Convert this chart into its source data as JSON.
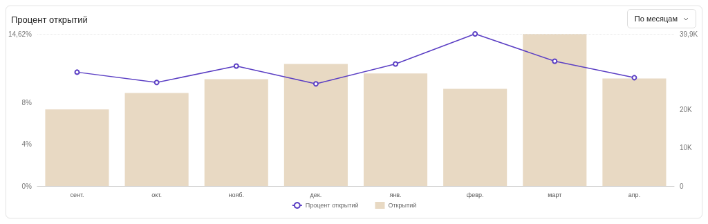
{
  "chart_data": {
    "type": "bar",
    "title": "Процент открытий",
    "annotations": [
      "По месяцам"
    ],
    "categories": [
      "сент.",
      "окт.",
      "нояб.",
      "дек.",
      "янв.",
      "февр.",
      "март",
      "апр."
    ],
    "series": [
      {
        "name": "Процент открытий",
        "type": "line",
        "color": "#5b3fc4",
        "values": [
          10.94,
          9.95,
          11.53,
          9.82,
          11.73,
          14.62,
          11.99,
          10.41
        ]
      },
      {
        "name": "Открытий",
        "type": "bar",
        "axis": "y2",
        "color": "#e8d9c3",
        "values": [
          20100,
          24400,
          28000,
          32000,
          29500,
          25500,
          39900,
          28200
        ]
      }
    ],
    "ylim": [
      0,
      14.62
    ],
    "yticks": [
      {
        "value": 0,
        "label": "0%"
      },
      {
        "value": 4,
        "label": "4%"
      },
      {
        "value": 8,
        "label": "8%"
      },
      {
        "value": 14.62,
        "label": "14,62%"
      }
    ],
    "y2lim": [
      0,
      39900
    ],
    "y2ticks": [
      0,
      {
        "value": 10000,
        "label": "10K"
      },
      {
        "value": 20000,
        "label": "20K"
      },
      {
        "value": 39900,
        "label": "39,9K"
      }
    ],
    "ref_lines": [
      {
        "axis": "y",
        "value": 14.62,
        "color": "#e6e6e6",
        "line_style": "dotted"
      }
    ],
    "legend": "bottom",
    "marker": "circle",
    "line_style": "solid"
  }
}
